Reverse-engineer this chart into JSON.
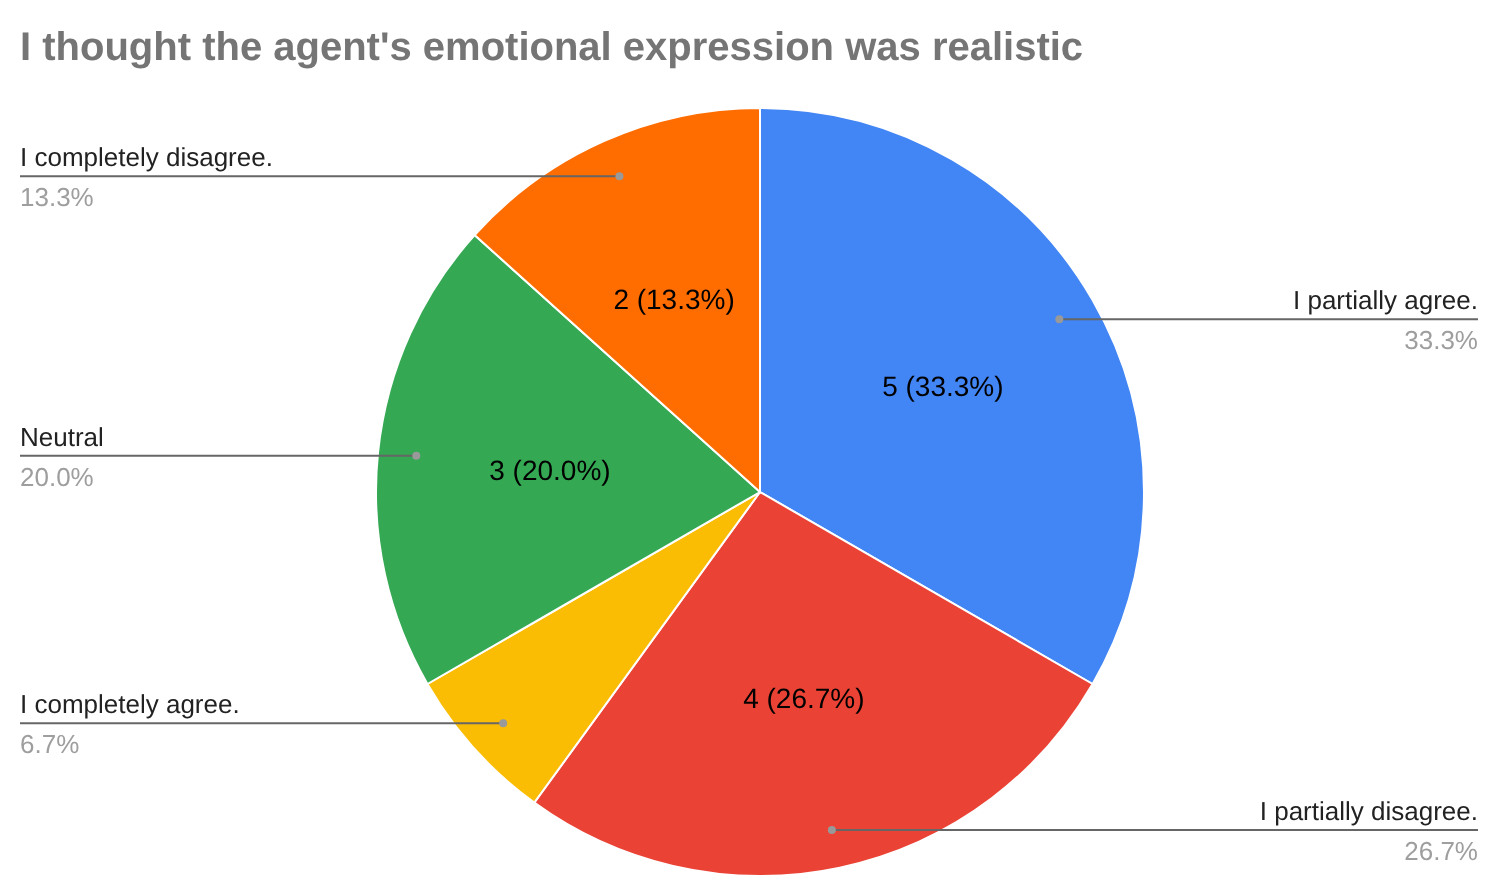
{
  "chart_data": {
    "type": "pie",
    "title": "I thought the agent's emotional expression was realistic",
    "categories": [
      "I partially agree.",
      "I partially disagree.",
      "I completely agree.",
      "Neutral",
      "I completely disagree."
    ],
    "values": [
      5,
      4,
      1,
      3,
      2
    ],
    "colors": [
      "#4285f4",
      "#ea4335",
      "#fbbc04",
      "#34a853",
      "#ff6d01"
    ],
    "value_labels": [
      "5 (33.3%)",
      "4 (26.7%)",
      null,
      "3 (20.0%)",
      "2 (13.3%)"
    ],
    "annotations": [
      "33.3%",
      "26.7%",
      "6.7%",
      "20.0%",
      "13.3%"
    ],
    "legend": false
  }
}
